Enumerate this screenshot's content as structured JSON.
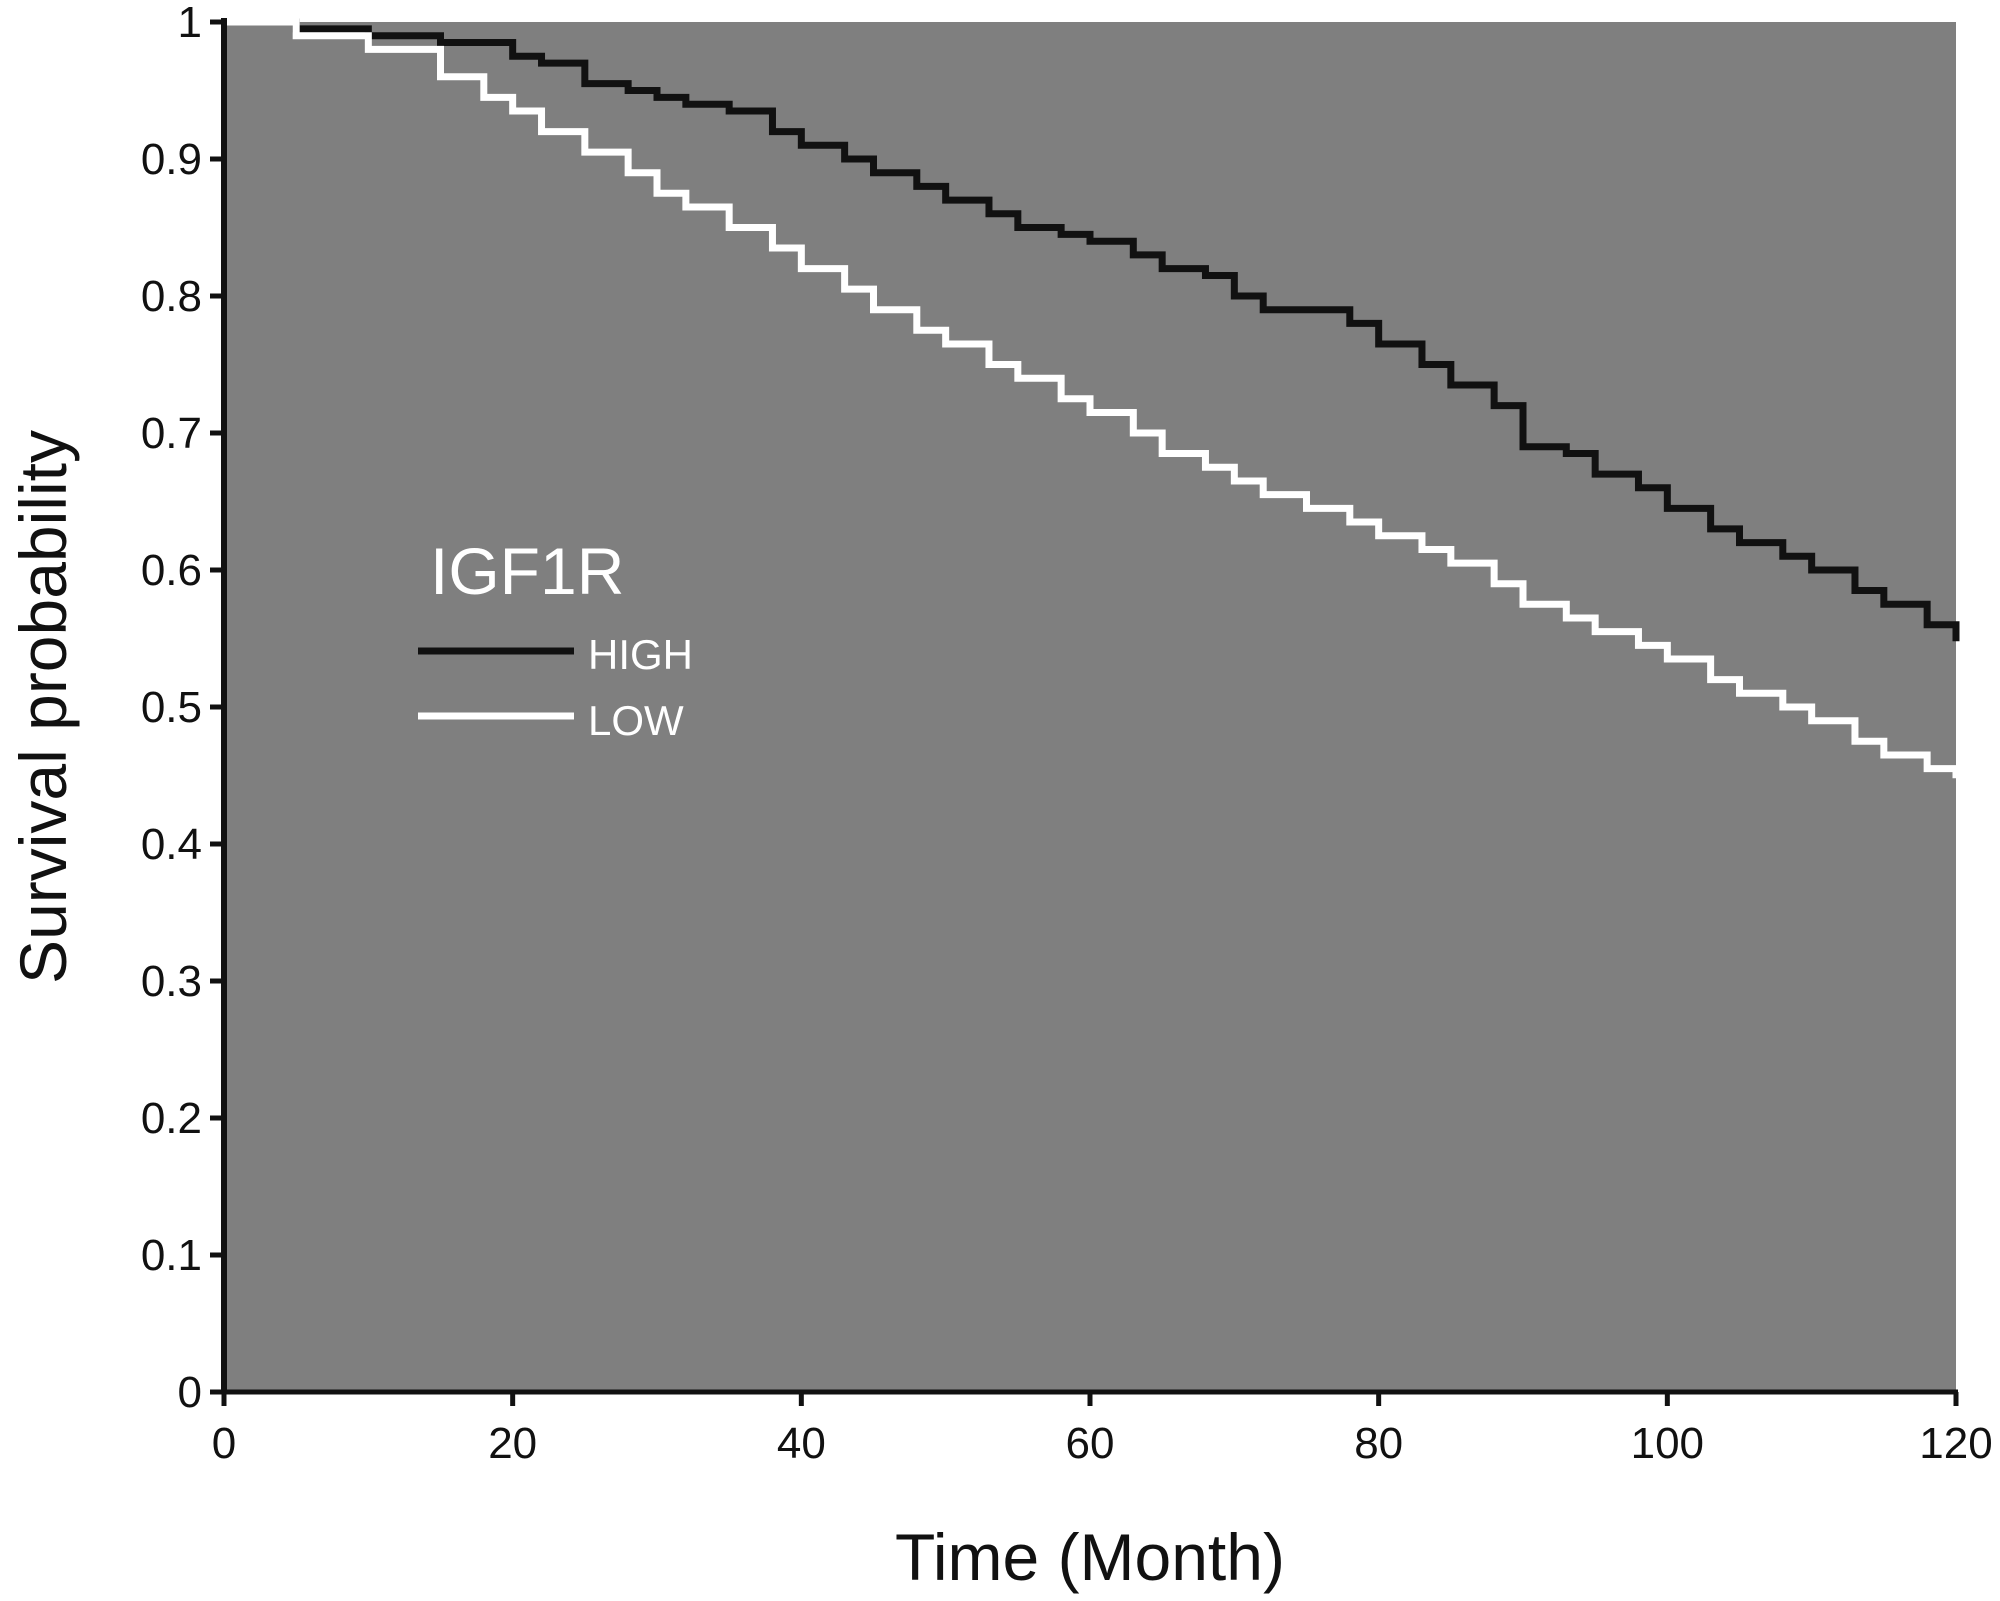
{
  "chart_data": {
    "type": "line",
    "title": "",
    "xlabel": "Time (Month)",
    "ylabel": "Survival probability",
    "xlim": [
      0,
      120
    ],
    "ylim": [
      0,
      1
    ],
    "xticks": [
      0,
      20,
      40,
      60,
      80,
      100,
      120
    ],
    "yticks": [
      0,
      0.1,
      0.2,
      0.3,
      0.4,
      0.5,
      0.6,
      0.7,
      0.8,
      0.9,
      1
    ],
    "ytick_labels": [
      "0",
      "0.1",
      "0.2",
      "0.3",
      "0.4",
      "0.5",
      "0.6",
      "0.7",
      "0.8",
      "0.9",
      "1"
    ],
    "grid": false,
    "legend": {
      "title": "IGF1R",
      "placement": "middle-left"
    },
    "colors": {
      "plot_background": "#7f7f7f",
      "axis": "#111111"
    },
    "series": [
      {
        "name": "HIGH",
        "color": "#111111",
        "step": true,
        "x": [
          0,
          5,
          10,
          15,
          20,
          22,
          25,
          28,
          30,
          32,
          35,
          38,
          40,
          43,
          45,
          48,
          50,
          53,
          55,
          58,
          60,
          63,
          65,
          68,
          70,
          72,
          75,
          78,
          80,
          83,
          85,
          88,
          90,
          93,
          95,
          98,
          100,
          103,
          105,
          108,
          110,
          113,
          115,
          118,
          120
        ],
        "y": [
          1.0,
          0.995,
          0.99,
          0.985,
          0.975,
          0.97,
          0.955,
          0.95,
          0.945,
          0.94,
          0.935,
          0.92,
          0.91,
          0.9,
          0.89,
          0.88,
          0.87,
          0.86,
          0.85,
          0.845,
          0.84,
          0.83,
          0.82,
          0.815,
          0.8,
          0.79,
          0.79,
          0.78,
          0.765,
          0.75,
          0.735,
          0.72,
          0.69,
          0.685,
          0.67,
          0.66,
          0.645,
          0.63,
          0.62,
          0.61,
          0.6,
          0.585,
          0.575,
          0.56,
          0.548
        ]
      },
      {
        "name": "LOW",
        "color": "#ffffff",
        "step": true,
        "x": [
          0,
          5,
          10,
          15,
          18,
          20,
          22,
          25,
          28,
          30,
          32,
          35,
          38,
          40,
          43,
          45,
          48,
          50,
          53,
          55,
          58,
          60,
          63,
          65,
          68,
          70,
          72,
          75,
          78,
          80,
          83,
          85,
          88,
          90,
          93,
          95,
          98,
          100,
          103,
          105,
          108,
          110,
          113,
          115,
          118,
          120
        ],
        "y": [
          1.0,
          0.99,
          0.98,
          0.96,
          0.945,
          0.935,
          0.92,
          0.905,
          0.89,
          0.875,
          0.865,
          0.85,
          0.835,
          0.82,
          0.805,
          0.79,
          0.775,
          0.765,
          0.75,
          0.74,
          0.725,
          0.715,
          0.7,
          0.685,
          0.675,
          0.665,
          0.655,
          0.645,
          0.635,
          0.625,
          0.615,
          0.605,
          0.59,
          0.575,
          0.565,
          0.555,
          0.545,
          0.535,
          0.52,
          0.51,
          0.5,
          0.49,
          0.475,
          0.465,
          0.455,
          0.448
        ]
      }
    ]
  }
}
